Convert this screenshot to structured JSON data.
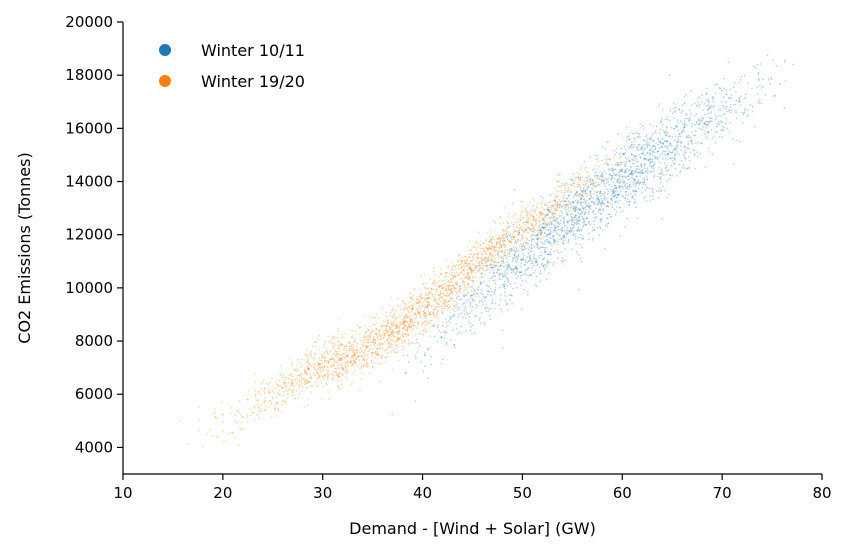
{
  "chart_data": {
    "type": "scatter",
    "xlabel": "Demand - [Wind + Solar] (GW)",
    "ylabel": "CO2 Emissions (Tonnes)",
    "xlim": [
      10,
      80
    ],
    "ylim": [
      3000,
      20000
    ],
    "xticks": [
      "10",
      "20",
      "30",
      "40",
      "50",
      "60",
      "70",
      "80"
    ],
    "yticks": [
      "4000",
      "6000",
      "8000",
      "10000",
      "12000",
      "14000",
      "16000",
      "18000",
      "20000"
    ],
    "grid": false,
    "legend_position": "top-left",
    "series": [
      {
        "name": "Winter 10/11",
        "color": "#1f77b4",
        "trend": [
          [
            34,
            6800
          ],
          [
            40,
            7900
          ],
          [
            45,
            9600
          ],
          [
            50,
            11200
          ],
          [
            55,
            12700
          ],
          [
            60,
            14100
          ],
          [
            65,
            15400
          ],
          [
            70,
            16700
          ],
          [
            75,
            17600
          ],
          [
            80,
            18200
          ]
        ],
        "x_range": [
          34,
          80
        ],
        "spread": 700
      },
      {
        "name": "Winter 19/20",
        "color": "#ff7f0e",
        "trend": [
          [
            14,
            4550
          ],
          [
            18,
            4800
          ],
          [
            22,
            5200
          ],
          [
            26,
            6200
          ],
          [
            30,
            7100
          ],
          [
            34,
            7700
          ],
          [
            38,
            8600
          ],
          [
            42,
            9800
          ],
          [
            46,
            11100
          ],
          [
            50,
            12200
          ],
          [
            54,
            13300
          ],
          [
            58,
            14300
          ],
          [
            62,
            15500
          ],
          [
            66,
            16500
          ]
        ],
        "x_range": [
          14,
          66
        ],
        "spread": 450
      }
    ]
  }
}
